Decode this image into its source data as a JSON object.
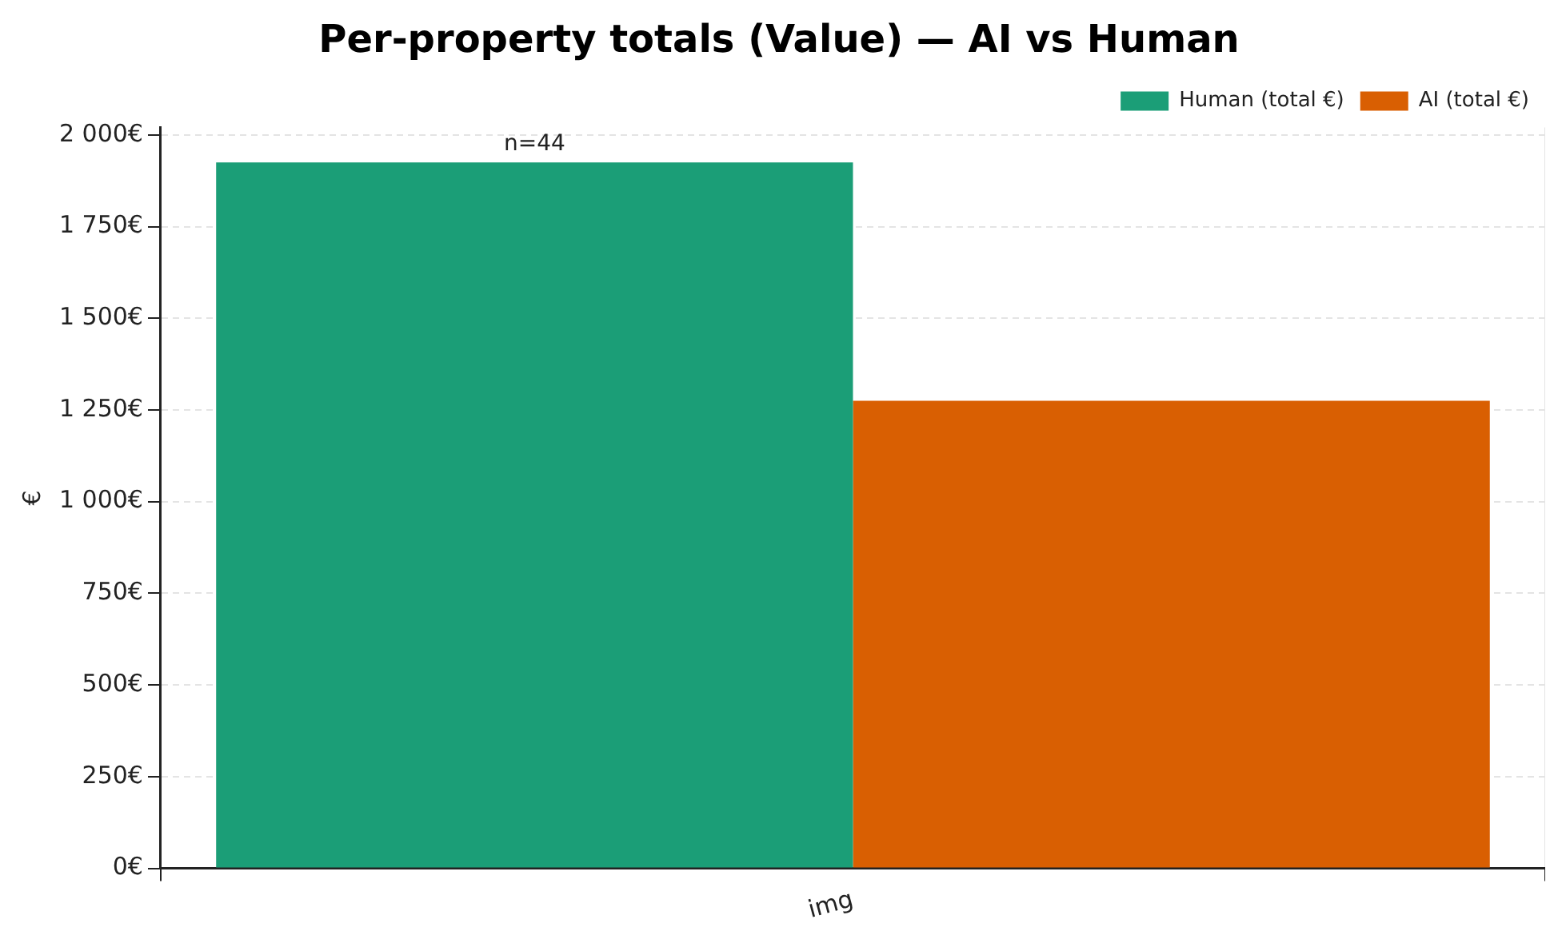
{
  "chart_data": {
    "type": "bar",
    "title": "Per-property totals (Value) — AI vs Human",
    "ylabel": "€",
    "categories": [
      "img"
    ],
    "series": [
      {
        "name": "Human (total €)",
        "color": "#1b9e77",
        "values": [
          1925
        ]
      },
      {
        "name": "AI (total €)",
        "color": "#d95f02",
        "values": [
          1275
        ]
      }
    ],
    "ylim": [
      0,
      2020
    ],
    "yticks": [
      {
        "value": 0,
        "label": "0€"
      },
      {
        "value": 250,
        "label": "250€"
      },
      {
        "value": 500,
        "label": "500€"
      },
      {
        "value": 750,
        "label": "750€"
      },
      {
        "value": 1000,
        "label": "1 000€"
      },
      {
        "value": 1250,
        "label": "1 250€"
      },
      {
        "value": 1500,
        "label": "1 500€"
      },
      {
        "value": 1750,
        "label": "1 750€"
      },
      {
        "value": 2000,
        "label": "2 000€"
      }
    ],
    "annotations": [
      "n=44"
    ],
    "grid": true,
    "legend": "top right"
  }
}
